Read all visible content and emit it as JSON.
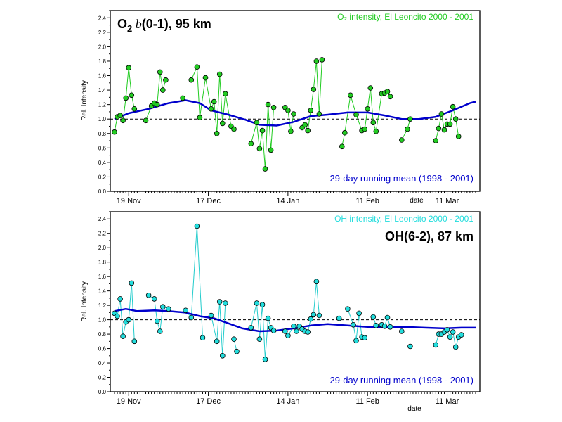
{
  "chart_data": [
    {
      "type": "line",
      "panel": "top",
      "title": "O",
      "title_sub": "2",
      "title_b": " b",
      "title_rest": "(0-1), 95 km",
      "legend_top": "O₂ intensity, El Leoncito 2000 - 2001",
      "legend_bottom": "29-day running mean (1998 - 2001)",
      "ylabel": "Rel. Intensity",
      "xlabel": "date",
      "ylim": [
        0.0,
        2.5
      ],
      "yticks": [
        "0.0",
        "0.2",
        "0.4",
        "0.6",
        "0.8",
        "1.0",
        "1.2",
        "1.4",
        "1.6",
        "1.8",
        "2.0",
        "2.2",
        "2.4"
      ],
      "xlim": [
        "2000-11-14",
        "2001-03-21"
      ],
      "xticks": [
        {
          "date": "2000-11-19",
          "label": "19 Nov"
        },
        {
          "date": "2000-12-17",
          "label": "17 Dec"
        },
        {
          "date": "2001-01-14",
          "label": "14 Jan"
        },
        {
          "date": "2001-02-11",
          "label": "11 Feb"
        },
        {
          "date": "2001-03-11",
          "label": "11 Mar"
        }
      ],
      "reference_line": 1.0,
      "colors": {
        "points": "#22cc22",
        "line": "#22cc22",
        "legend_top": "#22cc22",
        "mean": "#0000cc"
      },
      "series": [
        {
          "name": "O₂ intensity, El Leoncito 2000 - 2001",
          "kind": "points",
          "points": [
            [
              "2000-11-14",
              0.82
            ],
            [
              "2000-11-15",
              1.03
            ],
            [
              "2000-11-16",
              1.05
            ],
            [
              "2000-11-17",
              0.98
            ],
            [
              "2000-11-18",
              1.29
            ],
            [
              "2000-11-19",
              1.71
            ],
            [
              "2000-11-20",
              1.33
            ],
            [
              "2000-11-21",
              1.14
            ],
            [
              "2000-11-25",
              0.98
            ],
            [
              "2000-11-27",
              1.18
            ],
            [
              "2000-11-28",
              1.22
            ],
            [
              "2000-11-29",
              1.2
            ],
            [
              "2000-11-30",
              1.65
            ],
            [
              "2000-12-01",
              1.4
            ],
            [
              "2000-12-02",
              1.54
            ],
            [
              "2000-12-08",
              1.29
            ],
            [
              "2000-12-11",
              1.54
            ],
            [
              "2000-12-13",
              1.72
            ],
            [
              "2000-12-14",
              1.02
            ],
            [
              "2000-12-16",
              1.57
            ],
            [
              "2000-12-18",
              1.14
            ],
            [
              "2000-12-19",
              1.24
            ],
            [
              "2000-12-20",
              0.8
            ],
            [
              "2000-12-21",
              1.62
            ],
            [
              "2000-12-22",
              0.94
            ],
            [
              "2000-12-23",
              1.35
            ],
            [
              "2000-12-25",
              0.9
            ],
            [
              "2000-12-26",
              0.86
            ],
            [
              "2001-01-01",
              0.66
            ],
            [
              "2001-01-03",
              0.95
            ],
            [
              "2001-01-04",
              0.59
            ],
            [
              "2001-01-05",
              0.84
            ],
            [
              "2001-01-06",
              0.31
            ],
            [
              "2001-01-07",
              1.2
            ],
            [
              "2001-01-08",
              0.57
            ],
            [
              "2001-01-09",
              1.16
            ],
            [
              "2001-01-13",
              1.16
            ],
            [
              "2001-01-14",
              1.12
            ],
            [
              "2001-01-15",
              0.83
            ],
            [
              "2001-01-16",
              1.07
            ],
            [
              "2001-01-19",
              0.88
            ],
            [
              "2001-01-20",
              0.92
            ],
            [
              "2001-01-21",
              0.84
            ],
            [
              "2001-01-22",
              1.12
            ],
            [
              "2001-01-23",
              1.41
            ],
            [
              "2001-01-24",
              1.8
            ],
            [
              "2001-01-25",
              1.07
            ],
            [
              "2001-01-26",
              1.82
            ],
            [
              "2001-02-02",
              0.62
            ],
            [
              "2001-02-03",
              0.81
            ],
            [
              "2001-02-05",
              1.33
            ],
            [
              "2001-02-07",
              1.06
            ],
            [
              "2001-02-09",
              0.84
            ],
            [
              "2001-02-10",
              0.86
            ],
            [
              "2001-02-11",
              1.14
            ],
            [
              "2001-02-12",
              1.43
            ],
            [
              "2001-02-13",
              0.95
            ],
            [
              "2001-02-14",
              0.83
            ],
            [
              "2001-02-16",
              1.35
            ],
            [
              "2001-02-17",
              1.36
            ],
            [
              "2001-02-18",
              1.38
            ],
            [
              "2001-02-19",
              1.31
            ],
            [
              "2001-02-23",
              0.71
            ],
            [
              "2001-02-25",
              0.86
            ],
            [
              "2001-02-26",
              1.0
            ],
            [
              "2001-03-07",
              0.7
            ],
            [
              "2001-03-08",
              0.87
            ],
            [
              "2001-03-09",
              1.07
            ],
            [
              "2001-03-10",
              0.85
            ],
            [
              "2001-03-11",
              0.93
            ],
            [
              "2001-03-12",
              0.93
            ],
            [
              "2001-03-13",
              1.17
            ],
            [
              "2001-03-14",
              1.0
            ],
            [
              "2001-03-15",
              0.76
            ]
          ]
        },
        {
          "name": "29-day running mean (1998 - 2001)",
          "kind": "line",
          "points": [
            [
              "2000-11-14",
              1.0
            ],
            [
              "2000-11-19",
              1.08
            ],
            [
              "2000-11-26",
              1.14
            ],
            [
              "2000-12-03",
              1.22
            ],
            [
              "2000-12-09",
              1.26
            ],
            [
              "2000-12-14",
              1.22
            ],
            [
              "2000-12-18",
              1.12
            ],
            [
              "2000-12-24",
              1.06
            ],
            [
              "2000-12-30",
              0.99
            ],
            [
              "2001-01-04",
              0.92
            ],
            [
              "2001-01-10",
              0.91
            ],
            [
              "2001-01-16",
              0.96
            ],
            [
              "2001-01-22",
              1.04
            ],
            [
              "2001-01-28",
              1.06
            ],
            [
              "2001-02-04",
              1.09
            ],
            [
              "2001-02-11",
              1.09
            ],
            [
              "2001-02-17",
              1.05
            ],
            [
              "2001-02-23",
              1.0
            ],
            [
              "2001-03-01",
              1.0
            ],
            [
              "2001-03-07",
              1.03
            ],
            [
              "2001-03-13",
              1.12
            ],
            [
              "2001-03-19",
              1.22
            ],
            [
              "2001-03-21",
              1.24
            ]
          ]
        }
      ]
    },
    {
      "type": "line",
      "panel": "bottom",
      "title": "OH(6-2), 87 km",
      "legend_top": "OH intensity, El Leoncito 2000 - 2001",
      "legend_bottom": "29-day running mean (1998 - 2001)",
      "ylabel": "Rel. Intensity",
      "xlabel": "date",
      "ylim": [
        0.0,
        2.5
      ],
      "yticks": [
        "0.0",
        "0.2",
        "0.4",
        "0.6",
        "0.8",
        "1.0",
        "1.2",
        "1.4",
        "1.6",
        "1.8",
        "2.0",
        "2.2",
        "2.4"
      ],
      "xlim": [
        "2000-11-14",
        "2001-03-21"
      ],
      "xticks": [
        {
          "date": "2000-11-19",
          "label": "19 Nov"
        },
        {
          "date": "2000-12-17",
          "label": "17 Dec"
        },
        {
          "date": "2001-01-14",
          "label": "14 Jan"
        },
        {
          "date": "2001-02-11",
          "label": "11 Feb"
        },
        {
          "date": "2001-03-11",
          "label": "11 Mar"
        }
      ],
      "reference_line": 1.0,
      "colors": {
        "points": "#22dddd",
        "line": "#22cccc",
        "legend_top": "#22dddd",
        "mean": "#0000cc"
      },
      "series": [
        {
          "name": "OH intensity, El Leoncito 2000 - 2001",
          "kind": "points",
          "points": [
            [
              "2000-11-14",
              1.09
            ],
            [
              "2000-11-15",
              1.05
            ],
            [
              "2000-11-16",
              1.29
            ],
            [
              "2000-11-17",
              0.77
            ],
            [
              "2000-11-18",
              0.97
            ],
            [
              "2000-11-19",
              1.0
            ],
            [
              "2000-11-20",
              1.51
            ],
            [
              "2000-11-21",
              0.7
            ],
            [
              "2000-11-26",
              1.34
            ],
            [
              "2000-11-28",
              1.29
            ],
            [
              "2000-11-29",
              0.98
            ],
            [
              "2000-11-30",
              0.84
            ],
            [
              "2000-12-01",
              1.18
            ],
            [
              "2000-12-03",
              1.15
            ],
            [
              "2000-12-09",
              1.13
            ],
            [
              "2000-12-11",
              1.03
            ],
            [
              "2000-12-13",
              2.3
            ],
            [
              "2000-12-15",
              0.75
            ],
            [
              "2000-12-18",
              1.06
            ],
            [
              "2000-12-20",
              0.7
            ],
            [
              "2000-12-21",
              1.25
            ],
            [
              "2000-12-22",
              0.5
            ],
            [
              "2000-12-23",
              1.23
            ],
            [
              "2000-12-26",
              0.73
            ],
            [
              "2000-12-27",
              0.56
            ],
            [
              "2001-01-01",
              0.89
            ],
            [
              "2001-01-03",
              1.23
            ],
            [
              "2001-01-04",
              0.73
            ],
            [
              "2001-01-05",
              1.21
            ],
            [
              "2001-01-06",
              0.45
            ],
            [
              "2001-01-07",
              1.02
            ],
            [
              "2001-01-08",
              0.89
            ],
            [
              "2001-01-09",
              0.85
            ],
            [
              "2001-01-13",
              0.84
            ],
            [
              "2001-01-14",
              0.78
            ],
            [
              "2001-01-16",
              0.91
            ],
            [
              "2001-01-17",
              0.84
            ],
            [
              "2001-01-18",
              0.91
            ],
            [
              "2001-01-19",
              0.87
            ],
            [
              "2001-01-20",
              0.84
            ],
            [
              "2001-01-21",
              0.83
            ],
            [
              "2001-01-22",
              1.01
            ],
            [
              "2001-01-23",
              1.07
            ],
            [
              "2001-01-24",
              1.53
            ],
            [
              "2001-01-25",
              1.06
            ],
            [
              "2001-02-01",
              1.02
            ],
            [
              "2001-02-04",
              1.15
            ],
            [
              "2001-02-06",
              0.93
            ],
            [
              "2001-02-07",
              0.71
            ],
            [
              "2001-02-08",
              1.09
            ],
            [
              "2001-02-09",
              0.76
            ],
            [
              "2001-02-10",
              0.75
            ],
            [
              "2001-02-13",
              1.04
            ],
            [
              "2001-02-14",
              0.92
            ],
            [
              "2001-02-16",
              0.93
            ],
            [
              "2001-02-17",
              0.91
            ],
            [
              "2001-02-18",
              1.03
            ],
            [
              "2001-02-19",
              0.9
            ],
            [
              "2001-02-23",
              0.84
            ],
            [
              "2001-02-26",
              0.63
            ],
            [
              "2001-03-07",
              0.65
            ],
            [
              "2001-03-08",
              0.8
            ],
            [
              "2001-03-09",
              0.8
            ],
            [
              "2001-03-10",
              0.83
            ],
            [
              "2001-03-11",
              0.86
            ],
            [
              "2001-03-12",
              0.76
            ],
            [
              "2001-03-13",
              0.83
            ],
            [
              "2001-03-14",
              0.62
            ],
            [
              "2001-03-15",
              0.76
            ],
            [
              "2001-03-16",
              0.79
            ]
          ]
        },
        {
          "name": "29-day running mean (1998 - 2001)",
          "kind": "line",
          "points": [
            [
              "2000-11-14",
              1.12
            ],
            [
              "2000-11-18",
              1.15
            ],
            [
              "2000-11-22",
              1.12
            ],
            [
              "2000-11-28",
              1.13
            ],
            [
              "2000-12-03",
              1.12
            ],
            [
              "2000-12-09",
              1.1
            ],
            [
              "2000-12-14",
              1.05
            ],
            [
              "2000-12-19",
              1.02
            ],
            [
              "2000-12-24",
              0.95
            ],
            [
              "2000-12-29",
              0.88
            ],
            [
              "2001-01-04",
              0.84
            ],
            [
              "2001-01-10",
              0.85
            ],
            [
              "2001-01-16",
              0.88
            ],
            [
              "2001-01-22",
              0.92
            ],
            [
              "2001-01-28",
              0.94
            ],
            [
              "2001-02-04",
              0.92
            ],
            [
              "2001-02-11",
              0.9
            ],
            [
              "2001-02-17",
              0.9
            ],
            [
              "2001-02-24",
              0.9
            ],
            [
              "2001-03-03",
              0.89
            ],
            [
              "2001-03-10",
              0.88
            ],
            [
              "2001-03-16",
              0.89
            ],
            [
              "2001-03-21",
              0.89
            ]
          ]
        }
      ]
    }
  ]
}
